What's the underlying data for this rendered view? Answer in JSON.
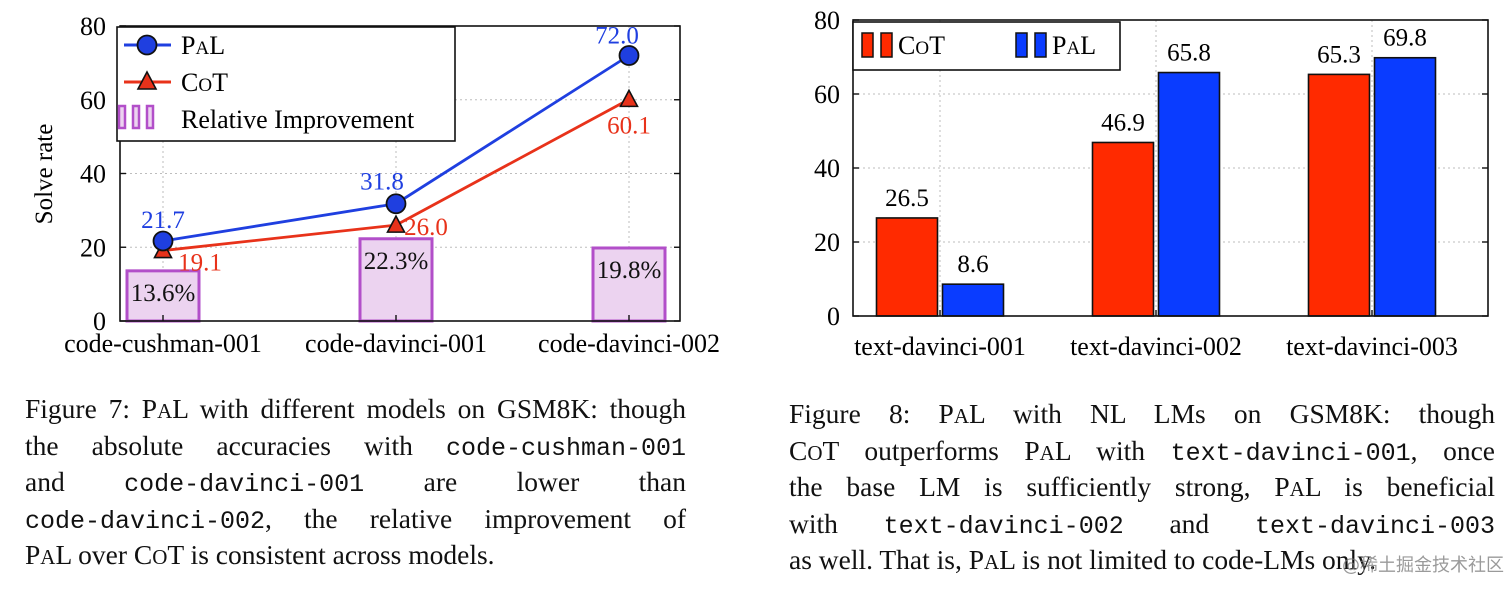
{
  "colors": {
    "pal": "#1f3fe0",
    "cot": "#e8321a",
    "improvement_stroke": "#b24fc9",
    "improvement_fill": "#ecd3f0",
    "pal_bar": "#0a3cff",
    "cot_bar": "#ff2a00"
  },
  "chart_data": [
    {
      "type": "line",
      "id": "figure7",
      "ylabel": "Solve rate",
      "ylim": [
        0,
        80
      ],
      "yticks": [
        "0",
        "20",
        "40",
        "60",
        "80"
      ],
      "categories": [
        "code-cushman-001",
        "code-davinci-001",
        "code-davinci-002"
      ],
      "series": [
        {
          "name": "PAL",
          "values": [
            21.7,
            31.8,
            72.0
          ],
          "labels": [
            "21.7",
            "31.8",
            "72.0"
          ]
        },
        {
          "name": "CoT",
          "values": [
            19.1,
            26.0,
            60.1
          ],
          "labels": [
            "19.1",
            "26.0",
            "60.1"
          ]
        },
        {
          "name": "Relative Improvement",
          "kind": "bar",
          "values": [
            13.6,
            22.3,
            19.8
          ],
          "labels": [
            "13.6%",
            "22.3%",
            "19.8%"
          ]
        }
      ],
      "legend": {
        "placement": "top-left",
        "entries": [
          "PAL",
          "CoT",
          "Relative Improvement"
        ]
      }
    },
    {
      "type": "bar",
      "id": "figure8",
      "ylim": [
        0,
        80
      ],
      "yticks": [
        "0",
        "20",
        "40",
        "60",
        "80"
      ],
      "categories": [
        "text-davinci-001",
        "text-davinci-002",
        "text-davinci-003"
      ],
      "series": [
        {
          "name": "CoT",
          "values": [
            26.5,
            46.9,
            65.3
          ],
          "labels": [
            "26.5",
            "46.9",
            "65.3"
          ]
        },
        {
          "name": "PAL",
          "values": [
            8.6,
            65.8,
            69.8
          ],
          "labels": [
            "8.6",
            "65.8",
            "69.8"
          ]
        }
      ],
      "legend": {
        "placement": "top-left",
        "entries": [
          "CoT",
          "PAL"
        ]
      }
    }
  ],
  "captions": {
    "figure7": {
      "l1a": "Figure 7: P",
      "l1b": "A",
      "l1c": "L with different models on ",
      "l1d": "GSM8K",
      "l1e": ": though",
      "l2a": "the absolute accuracies with ",
      "l2b": "code-cushman-001",
      "l3a": "and ",
      "l3b": "code-davinci-001",
      "l3c": " are lower than",
      "l4a": "code-davinci-002",
      "l4b": ", the relative improvement of",
      "l5a": "P",
      "l5b": "A",
      "l5c": "L over C",
      "l5d": "O",
      "l5e": "T is consistent across models."
    },
    "figure8": {
      "l1a": "Figure 8: P",
      "l1b": "A",
      "l1c": "L with NL LMs on ",
      "l1d": "GSM8K",
      "l1e": ": though",
      "l2a": "C",
      "l2b": "O",
      "l2c": "T outperforms P",
      "l2d": "A",
      "l2e": "L with ",
      "l2f": "text-davinci-001",
      "l2g": ", once",
      "l3a": "the base LM is sufficiently strong, P",
      "l3b": "A",
      "l3c": "L is beneficial",
      "l4a": "with ",
      "l4b": "text-davinci-002",
      "l4c": " and ",
      "l4d": "text-davinci-003",
      "l5a": "as well. That is, P",
      "l5b": "A",
      "l5c": "L is not limited to code-LMs only."
    }
  },
  "watermark": "@稀土掘金技术社区"
}
